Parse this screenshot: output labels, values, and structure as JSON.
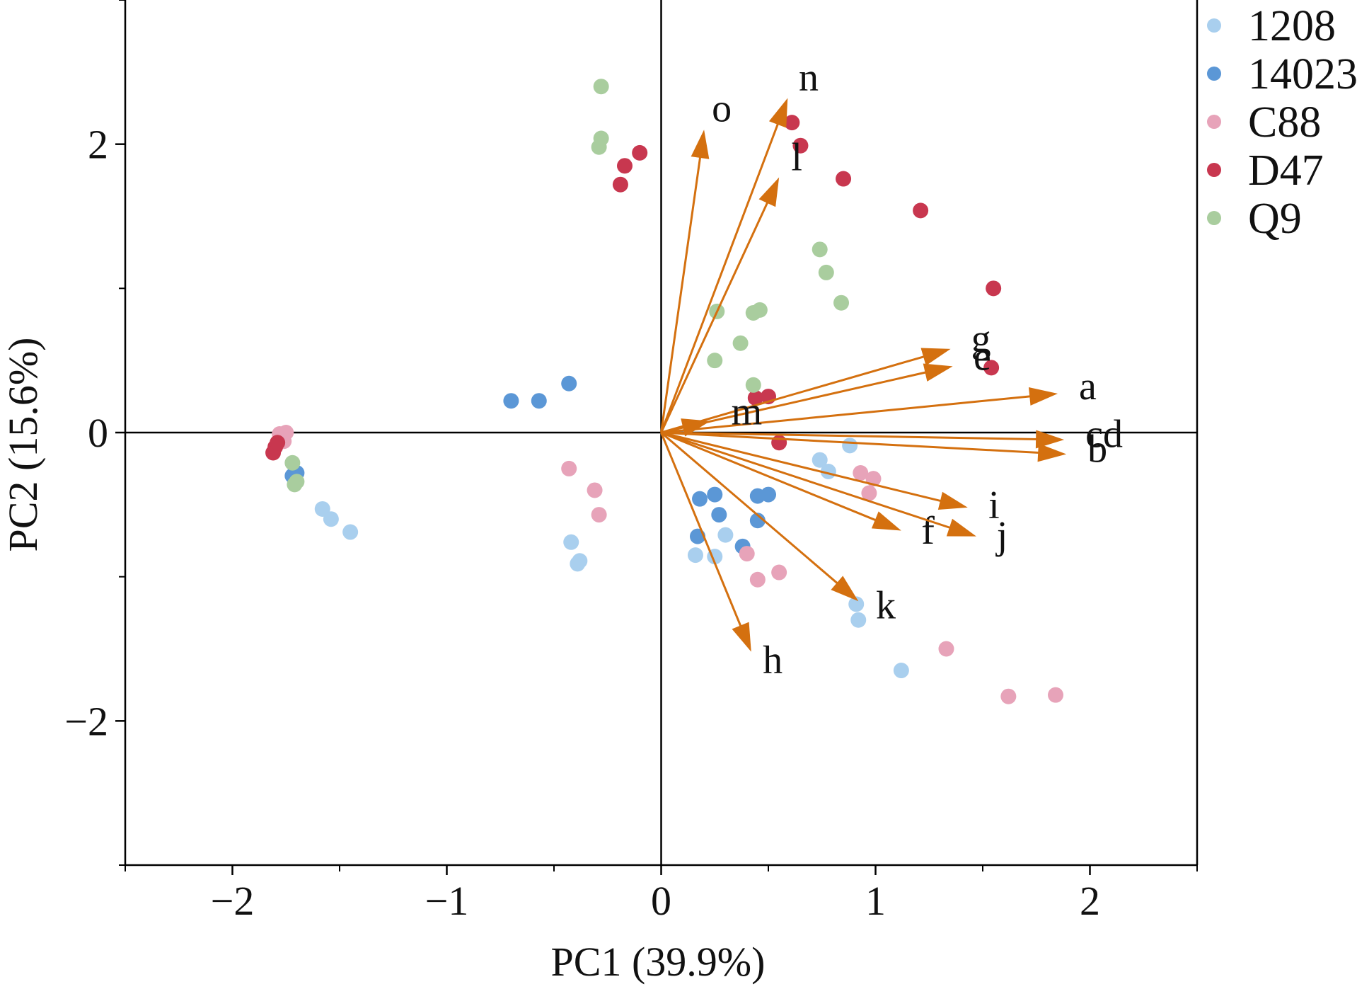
{
  "chart_data": {
    "type": "scatter",
    "xlabel": "PC1 (39.9%)",
    "ylabel": "PC2 (15.6%)",
    "xlim": [
      -2.5,
      2.5
    ],
    "ylim": [
      -3,
      3
    ],
    "x_ticks": [
      -2,
      -1,
      0,
      1,
      2
    ],
    "x_tick_labels": [
      "−2",
      "−1",
      "0",
      "1",
      "2"
    ],
    "y_ticks": [
      -2,
      0,
      2
    ],
    "y_tick_labels": [
      "−2",
      "0",
      "2"
    ],
    "grid": false,
    "reference_lines": [
      {
        "axis": "x",
        "value": 0
      },
      {
        "axis": "y",
        "value": 0
      }
    ],
    "legend_position": "right",
    "series": [
      {
        "name": "1208",
        "color": "#a9cfee",
        "points": [
          [
            -1.58,
            -0.53
          ],
          [
            -1.54,
            -0.6
          ],
          [
            -1.45,
            -0.69
          ],
          [
            -0.42,
            -0.76
          ],
          [
            -0.39,
            -0.91
          ],
          [
            -0.38,
            -0.89
          ],
          [
            0.16,
            -0.85
          ],
          [
            0.25,
            -0.86
          ],
          [
            0.3,
            -0.71
          ],
          [
            0.74,
            -0.19
          ],
          [
            0.78,
            -0.27
          ],
          [
            0.88,
            -0.09
          ],
          [
            0.91,
            -1.19
          ],
          [
            0.92,
            -1.3
          ],
          [
            1.12,
            -1.65
          ]
        ]
      },
      {
        "name": "14023",
        "color": "#5b97d6",
        "points": [
          [
            -1.7,
            -0.28
          ],
          [
            -1.72,
            -0.3
          ],
          [
            -0.7,
            0.22
          ],
          [
            -0.57,
            0.22
          ],
          [
            -0.43,
            0.34
          ],
          [
            0.17,
            -0.72
          ],
          [
            0.18,
            -0.46
          ],
          [
            0.25,
            -0.43
          ],
          [
            0.27,
            -0.57
          ],
          [
            0.38,
            -0.79
          ],
          [
            0.45,
            -0.61
          ],
          [
            0.45,
            -0.44
          ],
          [
            0.5,
            -0.43
          ]
        ]
      },
      {
        "name": "C88",
        "color": "#e7a3b9",
        "points": [
          [
            -1.75,
            0.0
          ],
          [
            -1.78,
            -0.01
          ],
          [
            -1.76,
            -0.06
          ],
          [
            -0.43,
            -0.25
          ],
          [
            -0.31,
            -0.4
          ],
          [
            -0.29,
            -0.57
          ],
          [
            0.4,
            -0.84
          ],
          [
            0.45,
            -1.02
          ],
          [
            0.55,
            -0.97
          ],
          [
            0.93,
            -0.28
          ],
          [
            0.97,
            -0.42
          ],
          [
            0.99,
            -0.32
          ],
          [
            1.33,
            -1.5
          ],
          [
            1.62,
            -1.83
          ],
          [
            1.84,
            -1.82
          ]
        ]
      },
      {
        "name": "D47",
        "color": "#c8374f",
        "points": [
          [
            -1.81,
            -0.14
          ],
          [
            -1.8,
            -0.1
          ],
          [
            -1.79,
            -0.07
          ],
          [
            -0.19,
            1.72
          ],
          [
            -0.17,
            1.85
          ],
          [
            -0.1,
            1.94
          ],
          [
            0.44,
            0.24
          ],
          [
            0.5,
            0.25
          ],
          [
            0.55,
            -0.07
          ],
          [
            0.61,
            2.15
          ],
          [
            0.65,
            1.99
          ],
          [
            0.85,
            1.76
          ],
          [
            1.21,
            1.54
          ],
          [
            1.54,
            0.45
          ],
          [
            1.55,
            1.0
          ]
        ]
      },
      {
        "name": "Q9",
        "color": "#a9cd9e",
        "points": [
          [
            -1.72,
            -0.21
          ],
          [
            -1.7,
            -0.34
          ],
          [
            -1.71,
            -0.36
          ],
          [
            -0.28,
            2.4
          ],
          [
            -0.28,
            2.04
          ],
          [
            -0.29,
            1.98
          ],
          [
            0.25,
            0.5
          ],
          [
            0.26,
            0.84
          ],
          [
            0.37,
            0.62
          ],
          [
            0.43,
            0.33
          ],
          [
            0.43,
            0.83
          ],
          [
            0.46,
            0.85
          ],
          [
            0.74,
            1.27
          ],
          [
            0.77,
            1.11
          ],
          [
            0.84,
            0.9
          ]
        ]
      }
    ],
    "loadings": {
      "color": "#d4700f",
      "vectors": [
        {
          "label": "a",
          "x": 1.85,
          "y": 0.27
        },
        {
          "label": "b",
          "x": 1.89,
          "y": -0.15
        },
        {
          "label": "cd",
          "x": 1.88,
          "y": -0.05
        },
        {
          "label": "e",
          "x": 1.36,
          "y": 0.46
        },
        {
          "label": "f",
          "x": 1.12,
          "y": -0.68
        },
        {
          "label": "g",
          "x": 1.35,
          "y": 0.58
        },
        {
          "label": "h",
          "x": 0.42,
          "y": -1.52
        },
        {
          "label": "i",
          "x": 1.43,
          "y": -0.52
        },
        {
          "label": "j",
          "x": 1.47,
          "y": -0.72
        },
        {
          "label": "k",
          "x": 0.92,
          "y": -1.17
        },
        {
          "label": "l",
          "x": 0.55,
          "y": 1.77
        },
        {
          "label": "m",
          "x": 0.23,
          "y": 0.08
        },
        {
          "label": "n",
          "x": 0.59,
          "y": 2.32
        },
        {
          "label": "o",
          "x": 0.2,
          "y": 2.1
        }
      ]
    }
  }
}
